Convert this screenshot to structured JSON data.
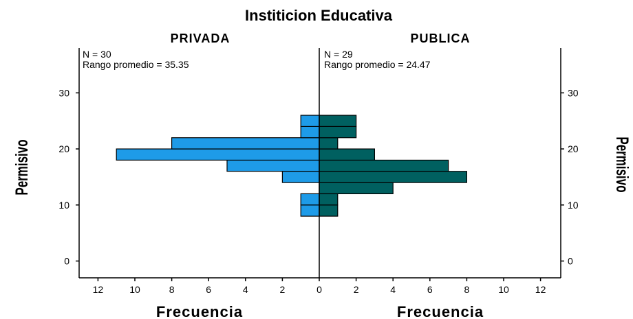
{
  "chart_data": {
    "type": "bar",
    "orientation": "back-to-back histogram",
    "title": "Institicion Educativa",
    "ylabel": "Permisivo",
    "xlabel": "Frecuencia",
    "ylim": [
      -3,
      38
    ],
    "xlim": [
      0,
      13
    ],
    "yticks": [
      0,
      10,
      20,
      30
    ],
    "xticks": [
      12,
      10,
      8,
      6,
      4,
      2,
      0
    ],
    "bin_width": 2,
    "panels": [
      {
        "name": "PRIVADA",
        "n_label": "N = 30",
        "rank_label": "Rango promedio = 35.35",
        "color": "#1e9be8",
        "bins": [
          {
            "y": 9,
            "count": 1
          },
          {
            "y": 11,
            "count": 1
          },
          {
            "y": 15,
            "count": 2
          },
          {
            "y": 17,
            "count": 5
          },
          {
            "y": 19,
            "count": 11
          },
          {
            "y": 21,
            "count": 8
          },
          {
            "y": 23,
            "count": 1
          },
          {
            "y": 25,
            "count": 1
          }
        ]
      },
      {
        "name": "PUBLICA",
        "n_label": "N = 29",
        "rank_label": "Rango promedio = 24.47",
        "color": "#006060",
        "bins": [
          {
            "y": 9,
            "count": 1
          },
          {
            "y": 11,
            "count": 1
          },
          {
            "y": 13,
            "count": 4
          },
          {
            "y": 15,
            "count": 8
          },
          {
            "y": 17,
            "count": 7
          },
          {
            "y": 19,
            "count": 3
          },
          {
            "y": 21,
            "count": 1
          },
          {
            "y": 23,
            "count": 2
          },
          {
            "y": 25,
            "count": 2
          }
        ]
      }
    ]
  }
}
